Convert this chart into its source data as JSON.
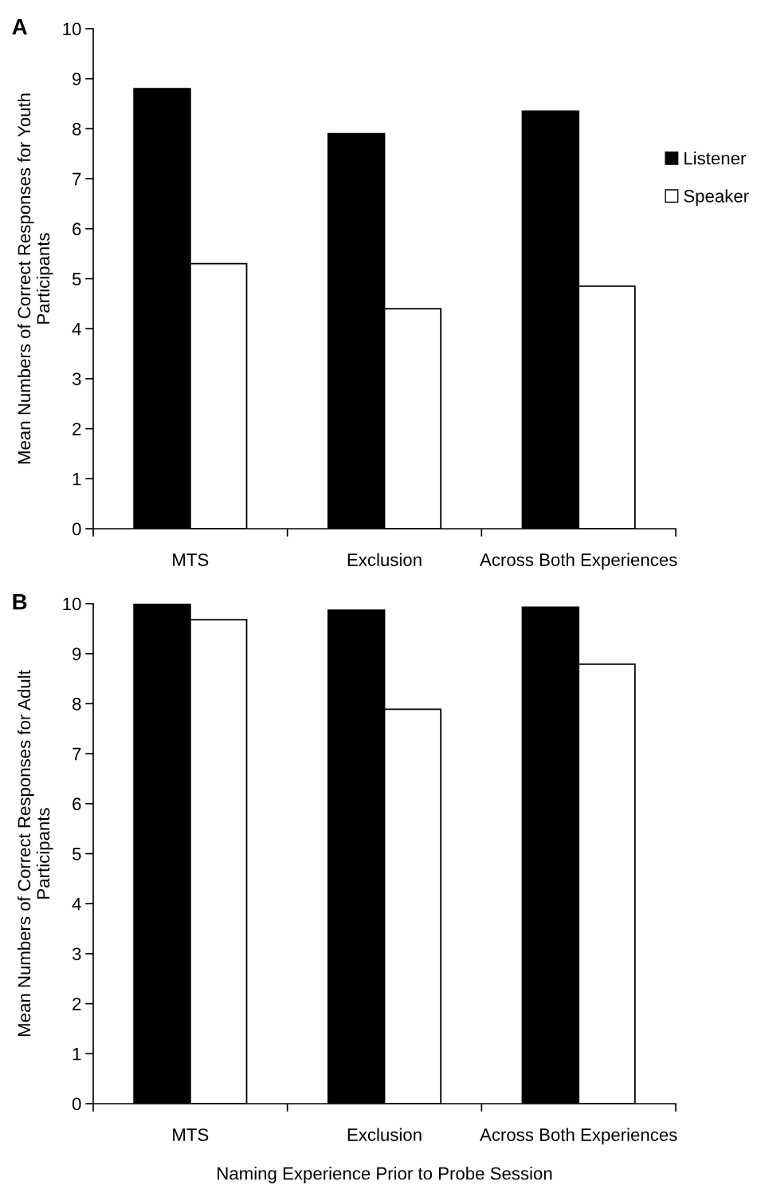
{
  "chart_data": [
    {
      "type": "bar",
      "annotations": [
        "A"
      ],
      "ylabel": "Mean Numbers of Correct Responses for Youth\nParticipants",
      "categories": [
        "MTS",
        "Exclusion",
        "Across Both Experiences"
      ],
      "series": [
        {
          "name": "Listener",
          "color": "#000000",
          "values": [
            8.8,
            7.9,
            8.35
          ]
        },
        {
          "name": "Speaker",
          "color": "#ffffff",
          "values": [
            5.3,
            4.4,
            4.85
          ]
        }
      ],
      "ylim": [
        0,
        10
      ],
      "yticks": [
        0,
        1,
        2,
        3,
        4,
        5,
        6,
        7,
        8,
        9,
        10
      ],
      "grid": false,
      "legend": "right"
    },
    {
      "type": "bar",
      "annotations": [
        "B"
      ],
      "ylabel": "Mean Numbers of Correct Responses for Adult\nParticipants",
      "xlabel": "Naming Experience Prior to Probe Session",
      "categories": [
        "MTS",
        "Exclusion",
        "Across Both Experiences"
      ],
      "series": [
        {
          "color": "#000000",
          "values": [
            10,
            9.87,
            9.93
          ]
        },
        {
          "color": "#ffffff",
          "values": [
            9.68,
            7.89,
            8.79
          ]
        }
      ],
      "ylim": [
        0,
        10
      ],
      "yticks": [
        0,
        1,
        2,
        3,
        4,
        5,
        6,
        7,
        8,
        9,
        10
      ],
      "grid": false,
      "legend": false
    }
  ]
}
